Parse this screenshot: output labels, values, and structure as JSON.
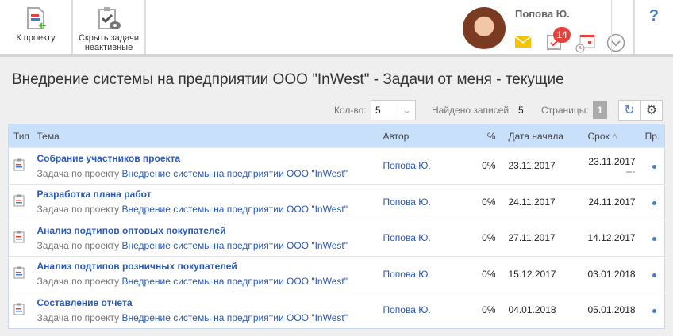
{
  "toolbar": {
    "to_project": "К проекту",
    "hide_inactive_1": "Скрыть задачи",
    "hide_inactive_2": "неактивные"
  },
  "user": {
    "name": "Попова Ю.",
    "notifications": "14",
    "help": "?"
  },
  "title": "Внедрение системы на предприятии ООО \"InWest\" - Задачи от меня - текущие",
  "controls": {
    "count_label": "Кол-во:",
    "count_value": "5",
    "found_label": "Найдено записей:",
    "found_value": "5",
    "pages_label": "Страницы:",
    "page": "1"
  },
  "columns": [
    "Тип",
    "Тема",
    "Автор",
    "%",
    "Дата начала",
    "Срок",
    "Пр."
  ],
  "rows": [
    {
      "title": "Собрание участников проекта",
      "sub": "Задача по проекту",
      "project": "Внедрение системы на предприятии ООО \"InWest\"",
      "author": "Попова Ю.",
      "pct": "0%",
      "start": "23.11.2017",
      "due": "23.11.2017",
      "due2": "---"
    },
    {
      "title": "Разработка плана работ",
      "sub": "Задача по проекту",
      "project": "Внедрение системы на предприятии ООО \"InWest\"",
      "author": "Попова Ю.",
      "pct": "0%",
      "start": "24.11.2017",
      "due": "24.11.2017",
      "due2": ""
    },
    {
      "title": "Анализ подтипов оптовых покупателей",
      "sub": "Задача по проекту",
      "project": "Внедрение системы на предприятии ООО \"InWest\"",
      "author": "Попова Ю.",
      "pct": "0%",
      "start": "27.11.2017",
      "due": "14.12.2017",
      "due2": ""
    },
    {
      "title": "Анализ подтипов розничных покупателей",
      "sub": "Задача по проекту",
      "project": "Внедрение системы на предприятии ООО \"InWest\"",
      "author": "Попова Ю.",
      "pct": "0%",
      "start": "15.12.2017",
      "due": "03.01.2018",
      "due2": ""
    },
    {
      "title": "Составление отчета",
      "sub": "Задача по проекту",
      "project": "Внедрение системы на предприятии ООО \"InWest\"",
      "author": "Попова Ю.",
      "pct": "0%",
      "start": "04.01.2018",
      "due": "05.01.2018",
      "due2": ""
    }
  ]
}
